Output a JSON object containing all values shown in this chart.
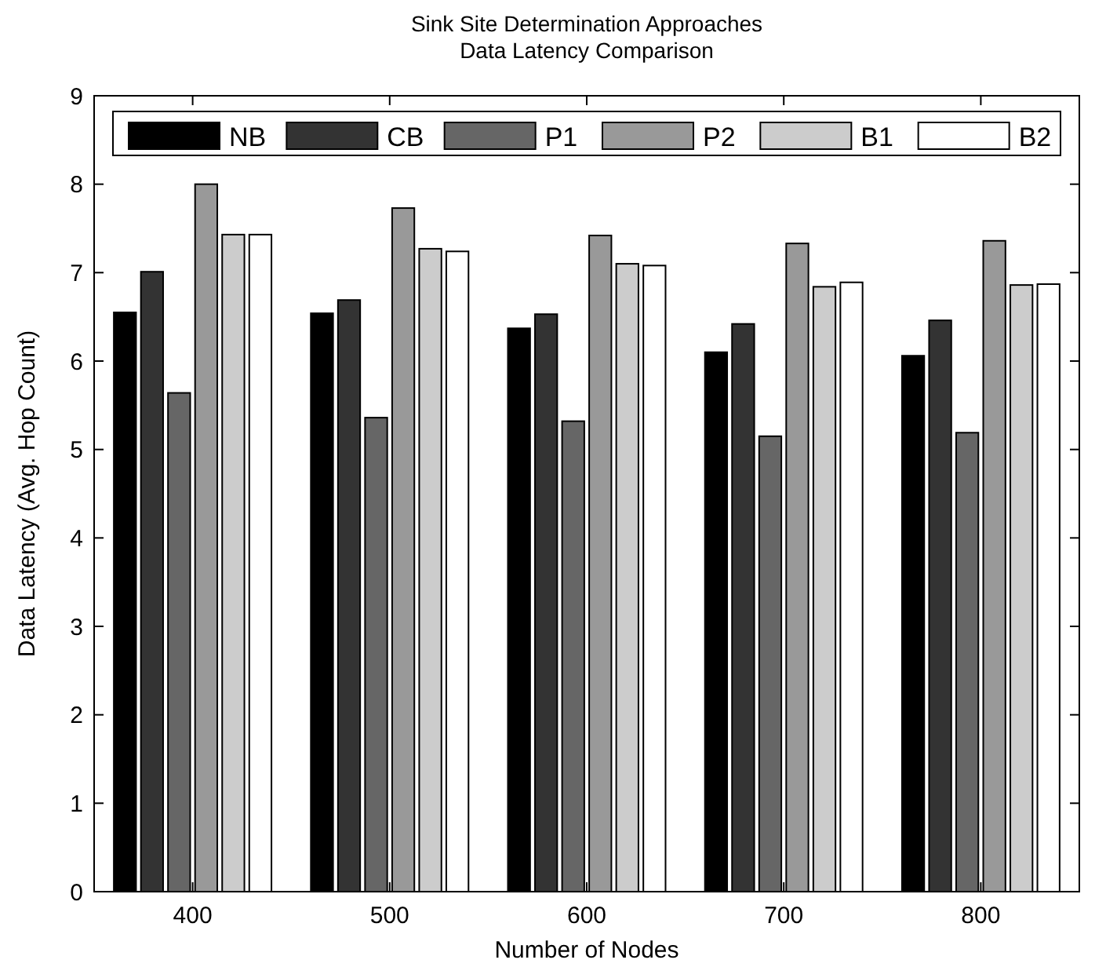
{
  "chart_data": {
    "type": "bar",
    "title": "Sink Site Determination Approaches",
    "subtitle": "Data Latency Comparison",
    "xlabel": "Number of Nodes",
    "ylabel": "Data Latency (Avg. Hop Count)",
    "categories": [
      "400",
      "500",
      "600",
      "700",
      "800"
    ],
    "series": [
      {
        "name": "NB",
        "color": "#000000",
        "values": [
          6.55,
          6.54,
          6.37,
          6.1,
          6.06
        ]
      },
      {
        "name": "CB",
        "color": "#333333",
        "values": [
          7.01,
          6.69,
          6.53,
          6.42,
          6.46
        ]
      },
      {
        "name": "P1",
        "color": "#666666",
        "values": [
          5.64,
          5.36,
          5.32,
          5.15,
          5.19
        ]
      },
      {
        "name": "P2",
        "color": "#999999",
        "values": [
          8.0,
          7.73,
          7.42,
          7.33,
          7.36
        ]
      },
      {
        "name": "B1",
        "color": "#cccccc",
        "values": [
          7.43,
          7.27,
          7.1,
          6.84,
          6.86
        ]
      },
      {
        "name": "B2",
        "color": "#ffffff",
        "values": [
          7.43,
          7.24,
          7.08,
          6.89,
          6.87
        ]
      }
    ],
    "ylim": [
      0,
      9
    ],
    "yticks": [
      0,
      1,
      2,
      3,
      4,
      5,
      6,
      7,
      8,
      9
    ],
    "grid": false,
    "legend": "top"
  }
}
